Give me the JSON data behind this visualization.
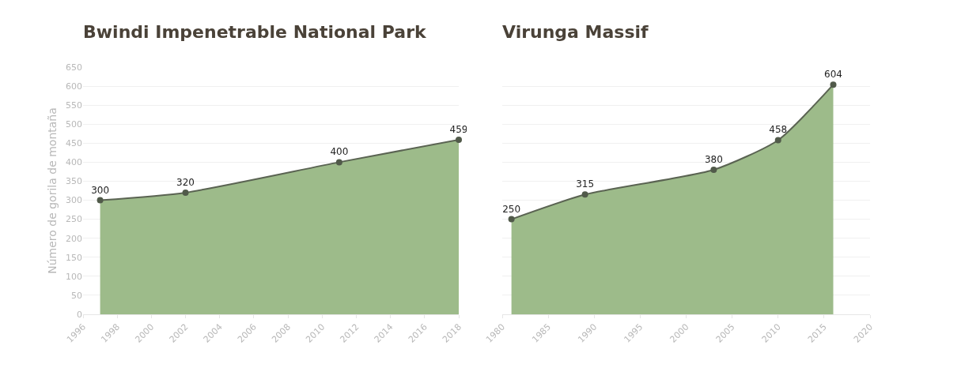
{
  "chart_data": [
    {
      "type": "area",
      "title": "Bwindi Impenetrable National Park",
      "ylabel": "Número de gorila de montaña",
      "x": [
        1997,
        2002,
        2011,
        2018
      ],
      "series": [
        {
          "color": "#9dbb8a",
          "values": [
            300,
            320,
            400,
            459
          ]
        }
      ],
      "xlim": [
        1996,
        2018
      ],
      "xticks": [
        1996,
        1998,
        2000,
        2002,
        2004,
        2006,
        2008,
        2010,
        2012,
        2014,
        2016,
        2018
      ],
      "ylim": [
        0,
        650
      ],
      "yticks": [
        0,
        50,
        100,
        150,
        200,
        250,
        300,
        350,
        400,
        450,
        500,
        550,
        600,
        650
      ],
      "grid": "y",
      "marker": "circle",
      "data_labels": true,
      "legend": false
    },
    {
      "type": "area",
      "title": "Virunga Massif",
      "x": [
        1981,
        1989,
        2003,
        2010,
        2016
      ],
      "series": [
        {
          "color": "#9dbb8a",
          "values": [
            250,
            315,
            380,
            458,
            604
          ]
        }
      ],
      "xlim": [
        1980,
        2020
      ],
      "xticks": [
        1980,
        1985,
        1990,
        1995,
        2000,
        2005,
        2010,
        2015,
        2020
      ],
      "ylim": [
        0,
        650
      ],
      "yticks": [
        0,
        50,
        100,
        150,
        200,
        250,
        300,
        350,
        400,
        450,
        500,
        550,
        600,
        650
      ],
      "grid": "y",
      "marker": "circle",
      "data_labels": true,
      "legend": false,
      "tick_labels": "x"
    }
  ]
}
